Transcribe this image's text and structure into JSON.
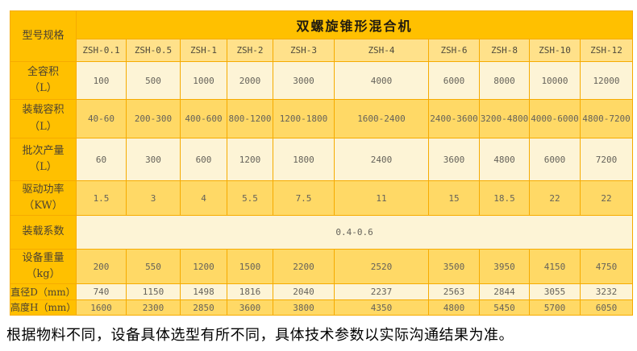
{
  "table": {
    "corner_label": "型号规格",
    "title": "双螺旋锥形混合机",
    "models": [
      "ZSH-0.1",
      "ZSH-0.5",
      "ZSH-1",
      "ZSH-2",
      "ZSH-3",
      "ZSH-4",
      "ZSH-6",
      "ZSH-8",
      "ZSH-10",
      "ZSH-12"
    ],
    "rows": [
      {
        "label": "全容积",
        "unit": "（L）",
        "bg": "cream",
        "values": [
          "100",
          "500",
          "1000",
          "2000",
          "3000",
          "4000",
          "6000",
          "8000",
          "10000",
          "12000"
        ]
      },
      {
        "label": "装载容积",
        "unit": "（L）",
        "bg": "yellow",
        "values": [
          "40-60",
          "200-300",
          "400-600",
          "800-1200",
          "1200-1800",
          "1600-2400",
          "2400-3600",
          "3200-4800",
          "4000-6000",
          "4800-7200"
        ]
      },
      {
        "label": "批次产量",
        "unit": "（L）",
        "bg": "cream",
        "values": [
          "60",
          "300",
          "600",
          "1200",
          "1800",
          "2400",
          "3600",
          "4800",
          "6000",
          "7200"
        ]
      },
      {
        "label": "驱动功率",
        "unit": "（KW）",
        "bg": "yellow",
        "values": [
          "1.5",
          "3",
          "4",
          "5.5",
          "7.5",
          "11",
          "15",
          "18.5",
          "22",
          "22"
        ]
      },
      {
        "label": "装载系数",
        "unit": "",
        "bg": "cream",
        "span_value": "0.4-0.6"
      },
      {
        "label": "设备重量",
        "unit": "（kg）",
        "bg": "yellow",
        "values": [
          "200",
          "550",
          "1200",
          "1500",
          "2200",
          "2520",
          "3500",
          "3950",
          "4150",
          "4750"
        ]
      },
      {
        "label": "直径D（mm）",
        "unit": "",
        "inline": true,
        "bg": "cream",
        "values": [
          "740",
          "1150",
          "1498",
          "1816",
          "2040",
          "2237",
          "2563",
          "2844",
          "3055",
          "3232"
        ]
      },
      {
        "label": "高度H（mm）",
        "unit": "",
        "inline": true,
        "bg": "yellow",
        "values": [
          "1600",
          "2300",
          "2850",
          "3600",
          "3800",
          "4350",
          "4800",
          "5450",
          "5700",
          "6050"
        ]
      }
    ]
  },
  "footer_note": "根据物料不同，设备具体选型有所不同，具体技术参数以实际沟通结果为准。",
  "colors": {
    "header_gold": "#ffc000",
    "model_row_yellow": "#ffe18a",
    "row_cream": "#fdf4d6",
    "row_yellow": "#ffd966",
    "grid_gold": "#f6ab00"
  }
}
